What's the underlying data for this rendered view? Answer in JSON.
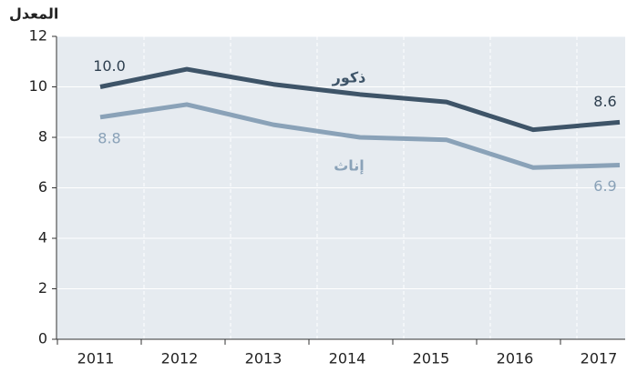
{
  "chart_data": {
    "type": "line",
    "y_label": "المعدل",
    "categories": [
      "2011",
      "2012",
      "2013",
      "2014",
      "2015",
      "2016",
      "2017"
    ],
    "series": [
      {
        "name": "ذكور",
        "color": "#3e5468",
        "values": [
          10.0,
          10.7,
          10.1,
          9.7,
          9.4,
          8.3,
          8.6
        ],
        "value_labels": [
          "10.0",
          null,
          null,
          null,
          null,
          null,
          "8.6"
        ]
      },
      {
        "name": "إناث",
        "color": "#8aa2b8",
        "values": [
          8.8,
          9.3,
          8.5,
          8.0,
          7.9,
          6.8,
          6.9
        ],
        "value_labels": [
          "8.8",
          null,
          null,
          null,
          null,
          null,
          "6.9"
        ]
      }
    ],
    "ylim": [
      0,
      12
    ],
    "yticks": [
      0,
      2,
      4,
      6,
      8,
      10,
      12
    ],
    "grid": true
  }
}
